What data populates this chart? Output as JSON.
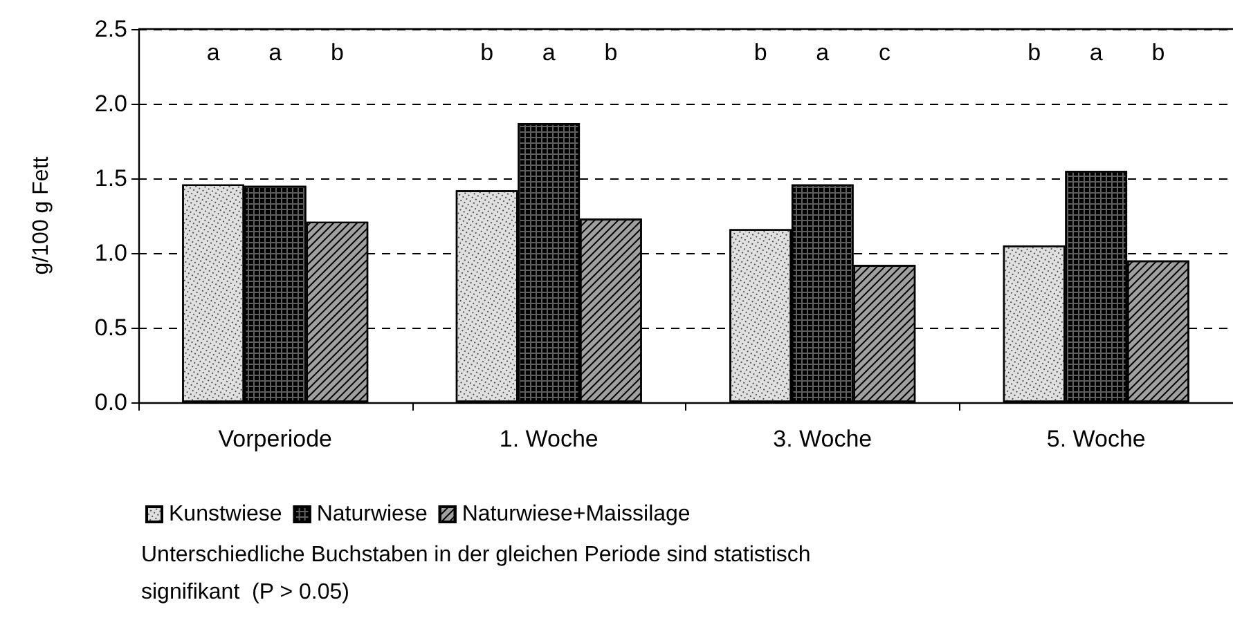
{
  "chart_data": {
    "type": "bar",
    "ylabel": "g/100 g Fett",
    "categories": [
      "Vorperiode",
      "1. Woche",
      "3. Woche",
      "5. Woche"
    ],
    "series": [
      {
        "name": "Kunstwiese",
        "color": "#e0e0e0",
        "values": [
          1.46,
          1.42,
          1.16,
          1.05
        ]
      },
      {
        "name": "Naturwiese",
        "color": "#606060",
        "values": [
          1.45,
          1.87,
          1.46,
          1.55
        ]
      },
      {
        "name": "Naturwiese+Maissilage",
        "color": "#a0a0a0",
        "values": [
          1.21,
          1.23,
          0.92,
          0.95
        ]
      }
    ],
    "ylim": [
      0,
      2.5
    ],
    "yticks": [
      {
        "value": 0,
        "label": "0.0"
      },
      {
        "value": 0.5,
        "label": "0.5"
      },
      {
        "value": 1,
        "label": "1.0"
      },
      {
        "value": 1.5,
        "label": "1.5"
      },
      {
        "value": 2,
        "label": "2.0"
      },
      {
        "value": 2.5,
        "label": "2.5"
      }
    ],
    "grid": "y",
    "legend": "bottom",
    "annotations": [
      "a",
      "a",
      "b",
      "b",
      "a",
      "b",
      "b",
      "a",
      "c",
      "b",
      "a",
      "b",
      "Unterschiedliche Buchstaben in der gleichen Periode sind statistisch\nsignifikant  (P > 0.05)"
    ]
  }
}
